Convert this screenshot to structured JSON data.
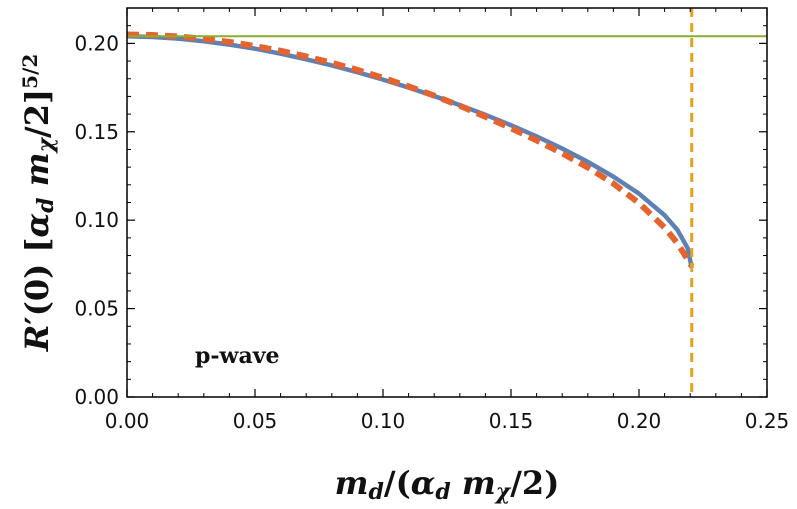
{
  "chart_data": {
    "type": "line",
    "annotation": "p-wave",
    "xlabel": {
      "parts": [
        {
          "t": "m",
          "style": "italic"
        },
        {
          "t": "d",
          "style": "italic-sub"
        },
        {
          "t": "/(",
          "style": "normal"
        },
        {
          "t": "α",
          "style": "italic"
        },
        {
          "t": "d",
          "style": "italic-sub"
        },
        {
          "t": " m",
          "style": "italic"
        },
        {
          "t": "χ",
          "style": "italic-sub"
        },
        {
          "t": "/2)",
          "style": "normal"
        }
      ]
    },
    "ylabel": {
      "parts": [
        {
          "t": "R",
          "style": "italic"
        },
        {
          "t": "′(0)  [",
          "style": "normal"
        },
        {
          "t": "α",
          "style": "italic"
        },
        {
          "t": "d",
          "style": "italic-sub"
        },
        {
          "t": " m",
          "style": "italic"
        },
        {
          "t": "χ",
          "style": "italic-sub"
        },
        {
          "t": "/2]",
          "style": "normal"
        },
        {
          "t": "5/2",
          "style": "sup"
        }
      ]
    },
    "xlim": [
      0.0,
      0.25
    ],
    "ylim": [
      0.0,
      0.22
    ],
    "xticks": [
      "0.00",
      "0.05",
      "0.10",
      "0.15",
      "0.20",
      "0.25"
    ],
    "yticks": [
      "0.00",
      "0.05",
      "0.10",
      "0.15",
      "0.20"
    ],
    "series": [
      {
        "color": "#5e81b5",
        "dash": "solid",
        "points": [
          [
            0.0,
            0.204
          ],
          [
            0.01,
            0.2036
          ],
          [
            0.02,
            0.2027
          ],
          [
            0.03,
            0.2012
          ],
          [
            0.04,
            0.1993
          ],
          [
            0.05,
            0.197
          ],
          [
            0.06,
            0.1942
          ],
          [
            0.07,
            0.191
          ],
          [
            0.08,
            0.1875
          ],
          [
            0.09,
            0.1837
          ],
          [
            0.1,
            0.1795
          ],
          [
            0.11,
            0.175
          ],
          [
            0.12,
            0.1702
          ],
          [
            0.13,
            0.1651
          ],
          [
            0.14,
            0.1596
          ],
          [
            0.15,
            0.1537
          ],
          [
            0.16,
            0.1474
          ],
          [
            0.17,
            0.1405
          ],
          [
            0.18,
            0.133
          ],
          [
            0.19,
            0.1246
          ],
          [
            0.2,
            0.115
          ],
          [
            0.21,
            0.1028
          ],
          [
            0.215,
            0.0945
          ],
          [
            0.219,
            0.0842
          ],
          [
            0.2206,
            0.073
          ]
        ]
      },
      {
        "color": "#e5632e",
        "dash": "dashed",
        "points": [
          [
            0.0,
            0.205
          ],
          [
            0.01,
            0.2047
          ],
          [
            0.02,
            0.2039
          ],
          [
            0.03,
            0.2026
          ],
          [
            0.04,
            0.2008
          ],
          [
            0.05,
            0.1985
          ],
          [
            0.06,
            0.1958
          ],
          [
            0.07,
            0.1926
          ],
          [
            0.08,
            0.189
          ],
          [
            0.09,
            0.185
          ],
          [
            0.1,
            0.1805
          ],
          [
            0.11,
            0.1757
          ],
          [
            0.12,
            0.1704
          ],
          [
            0.13,
            0.1647
          ],
          [
            0.14,
            0.1585
          ],
          [
            0.15,
            0.152
          ],
          [
            0.16,
            0.1451
          ],
          [
            0.17,
            0.1378
          ],
          [
            0.18,
            0.1298
          ],
          [
            0.19,
            0.1207
          ],
          [
            0.2,
            0.1097
          ],
          [
            0.21,
            0.0958
          ],
          [
            0.215,
            0.087
          ],
          [
            0.2206,
            0.074
          ]
        ]
      }
    ],
    "hlines": [
      {
        "y": 0.204,
        "color": "#8aae2e"
      }
    ],
    "vlines": [
      {
        "x": 0.2206,
        "color": "#e6a11f"
      }
    ]
  }
}
